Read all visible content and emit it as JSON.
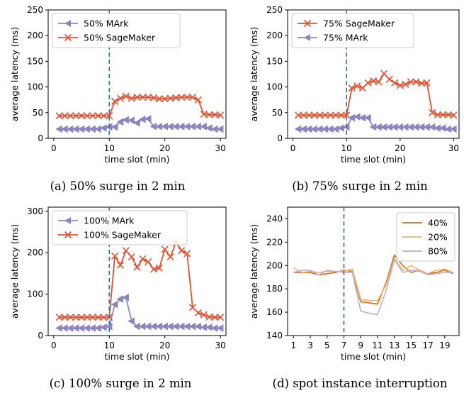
{
  "chart_data": [
    {
      "type": "line",
      "caption": "(a) 50% surge in 2 min",
      "xlabel": "time slot (min)",
      "ylabel": "average latency (ms)",
      "xlim": [
        -1,
        31
      ],
      "ylim": [
        0,
        250
      ],
      "xticks": [
        0,
        10,
        20,
        30
      ],
      "yticks": [
        0,
        50,
        100,
        150,
        200,
        250
      ],
      "vline_x": 10,
      "legend_position": "upper-left",
      "series": [
        {
          "name": "50% MArk",
          "color": "#8c86c0",
          "marker": "left-triangle",
          "x": [
            1,
            2,
            3,
            4,
            5,
            6,
            7,
            8,
            9,
            10,
            11,
            12,
            13,
            14,
            15,
            16,
            17,
            18,
            19,
            20,
            21,
            22,
            23,
            24,
            25,
            26,
            27,
            28,
            29,
            30
          ],
          "y": [
            18,
            18,
            18,
            18,
            18,
            18,
            18,
            18,
            20,
            22,
            22,
            32,
            36,
            35,
            30,
            37,
            38,
            23,
            23,
            23,
            23,
            23,
            23,
            23,
            23,
            23,
            23,
            20,
            18,
            18
          ]
        },
        {
          "name": "50% SageMaker",
          "color": "#e2512f",
          "marker": "x",
          "x": [
            1,
            2,
            3,
            4,
            5,
            6,
            7,
            8,
            9,
            10,
            11,
            12,
            13,
            14,
            15,
            16,
            17,
            18,
            19,
            20,
            21,
            22,
            23,
            24,
            25,
            26,
            27,
            28,
            29,
            30
          ],
          "y": [
            44,
            44,
            44,
            44,
            44,
            44,
            44,
            44,
            44,
            44,
            72,
            78,
            82,
            78,
            80,
            80,
            80,
            79,
            77,
            77,
            78,
            79,
            80,
            80,
            80,
            75,
            47,
            46,
            46,
            45
          ]
        }
      ]
    },
    {
      "type": "line",
      "caption": "(b) 75% surge in 2 min",
      "xlabel": "time slot (min)",
      "ylabel": "average latency (ms)",
      "xlim": [
        -1,
        31
      ],
      "ylim": [
        0,
        250
      ],
      "xticks": [
        0,
        10,
        20,
        30
      ],
      "yticks": [
        0,
        50,
        100,
        150,
        200,
        250
      ],
      "vline_x": 10,
      "legend_position": "upper-left",
      "series": [
        {
          "name": "75% SageMaker",
          "color": "#e2512f",
          "marker": "x",
          "x": [
            1,
            2,
            3,
            4,
            5,
            6,
            7,
            8,
            9,
            10,
            11,
            12,
            13,
            14,
            15,
            16,
            17,
            18,
            19,
            20,
            21,
            22,
            23,
            24,
            25,
            26,
            27,
            28,
            29,
            30
          ],
          "y": [
            45,
            45,
            45,
            45,
            45,
            45,
            45,
            45,
            45,
            45,
            98,
            102,
            98,
            108,
            112,
            110,
            126,
            115,
            108,
            103,
            105,
            110,
            110,
            107,
            108,
            50,
            46,
            46,
            46,
            45
          ]
        },
        {
          "name": "75% MArk",
          "color": "#8c86c0",
          "marker": "left-triangle",
          "x": [
            1,
            2,
            3,
            4,
            5,
            6,
            7,
            8,
            9,
            10,
            11,
            12,
            13,
            14,
            15,
            16,
            17,
            18,
            19,
            20,
            21,
            22,
            23,
            24,
            25,
            26,
            27,
            28,
            29,
            30
          ],
          "y": [
            18,
            18,
            18,
            18,
            18,
            18,
            18,
            18,
            20,
            22,
            40,
            42,
            40,
            40,
            22,
            22,
            22,
            22,
            22,
            22,
            22,
            22,
            22,
            22,
            22,
            22,
            20,
            20,
            18,
            18
          ]
        }
      ]
    },
    {
      "type": "line",
      "caption": "(c) 100% surge in 2 min",
      "xlabel": "time slot (min)",
      "ylabel": "average latency (ms)",
      "xlim": [
        -1,
        31
      ],
      "ylim": [
        0,
        310
      ],
      "xticks": [
        0,
        10,
        20,
        30
      ],
      "yticks": [
        0,
        100,
        200,
        300
      ],
      "vline_x": 10,
      "legend_position": "upper-left",
      "series": [
        {
          "name": "100% MArk",
          "color": "#8c86c0",
          "marker": "left-triangle",
          "x": [
            1,
            2,
            3,
            4,
            5,
            6,
            7,
            8,
            9,
            10,
            11,
            12,
            13,
            14,
            15,
            16,
            17,
            18,
            19,
            20,
            21,
            22,
            23,
            24,
            25,
            26,
            27,
            28,
            29,
            30
          ],
          "y": [
            18,
            18,
            18,
            18,
            18,
            18,
            18,
            18,
            20,
            22,
            75,
            88,
            92,
            35,
            22,
            22,
            22,
            22,
            22,
            22,
            22,
            22,
            22,
            22,
            22,
            22,
            20,
            20,
            18,
            18
          ]
        },
        {
          "name": "100% SageMaker",
          "color": "#e2512f",
          "marker": "x",
          "x": [
            1,
            2,
            3,
            4,
            5,
            6,
            7,
            8,
            9,
            10,
            11,
            12,
            13,
            14,
            15,
            16,
            17,
            18,
            19,
            20,
            21,
            22,
            23,
            24,
            25,
            26,
            27,
            28,
            29,
            30
          ],
          "y": [
            44,
            44,
            44,
            44,
            44,
            44,
            44,
            44,
            44,
            44,
            192,
            170,
            205,
            190,
            165,
            185,
            178,
            160,
            163,
            208,
            190,
            225,
            205,
            198,
            68,
            55,
            50,
            45,
            44,
            44
          ]
        }
      ]
    },
    {
      "type": "line",
      "caption": "(d) spot instance interruption",
      "xlabel": "time slot (min)",
      "ylabel": "average latency (ms)",
      "xlim": [
        0.3,
        20.7
      ],
      "ylim": [
        140,
        250
      ],
      "xticks": [
        1,
        3,
        5,
        7,
        9,
        11,
        13,
        15,
        17,
        19
      ],
      "yticks": [
        140,
        160,
        180,
        200,
        220,
        240
      ],
      "vline_x": 7,
      "legend_position": "upper-right",
      "series": [
        {
          "name": "40%",
          "color": "#d96b14",
          "marker": "",
          "x": [
            1,
            2,
            3,
            4,
            5,
            6,
            7,
            8,
            9,
            10,
            11,
            12,
            13,
            14,
            15,
            16,
            17,
            18,
            19,
            20
          ],
          "y": [
            194,
            194,
            194,
            192,
            193,
            194,
            196,
            195,
            169,
            168,
            167,
            185,
            209,
            200,
            194,
            196,
            193,
            194,
            196,
            193
          ]
        },
        {
          "name": "20%",
          "color": "#f7b266",
          "marker": "",
          "x": [
            1,
            2,
            3,
            4,
            5,
            6,
            7,
            8,
            9,
            10,
            11,
            12,
            13,
            14,
            15,
            16,
            17,
            18,
            19,
            20
          ],
          "y": [
            198,
            194,
            195,
            194,
            195,
            195,
            195,
            197,
            171,
            170,
            170,
            183,
            206,
            196,
            200,
            196,
            193,
            196,
            197,
            194
          ]
        },
        {
          "name": "80%",
          "color": "#b4b0d8",
          "marker": "",
          "x": [
            1,
            2,
            3,
            4,
            5,
            6,
            7,
            8,
            9,
            10,
            11,
            12,
            13,
            14,
            15,
            16,
            17,
            18,
            19,
            20
          ],
          "y": [
            194,
            196,
            196,
            192,
            196,
            195,
            194,
            194,
            161,
            159,
            158,
            178,
            205,
            194,
            196,
            195,
            192,
            193,
            194,
            194
          ]
        }
      ]
    }
  ]
}
